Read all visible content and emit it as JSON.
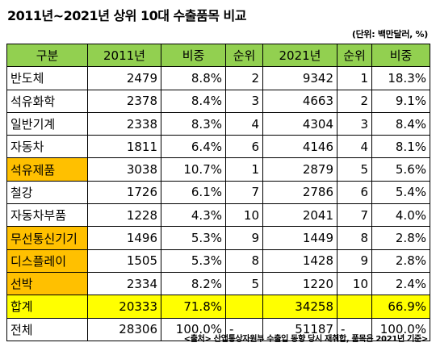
{
  "title": "2011년~2021년 상위 10대 수출품목 비교",
  "unit_note": "(단위: 백만달러, %)",
  "headers": [
    "구분",
    "2011년",
    "비중",
    "순위",
    "2021년",
    "순위",
    "비중"
  ],
  "rows": [
    {
      "name": "반도체",
      "v2011": "2479",
      "share2011": "8.8%",
      "rank2011": "2",
      "v2021": "9342",
      "rank2021": "1",
      "share2021": "18.3%"
    },
    {
      "name": "석유화학",
      "v2011": "2378",
      "share2011": "8.4%",
      "rank2011": "3",
      "v2021": "4663",
      "rank2021": "2",
      "share2021": "9.1%"
    },
    {
      "name": "일반기계",
      "v2011": "2338",
      "share2011": "8.3%",
      "rank2011": "4",
      "v2021": "4304",
      "rank2021": "3",
      "share2021": "8.4%"
    },
    {
      "name": "자동차",
      "v2011": "1811",
      "share2011": "6.4%",
      "rank2011": "6",
      "v2021": "4146",
      "rank2021": "4",
      "share2021": "8.1%"
    },
    {
      "name": "석유제품",
      "v2011": "3038",
      "share2011": "10.7%",
      "rank2011": "1",
      "v2021": "2879",
      "rank2021": "5",
      "share2021": "5.6%"
    },
    {
      "name": "철강",
      "v2011": "1726",
      "share2011": "6.1%",
      "rank2011": "7",
      "v2021": "2786",
      "rank2021": "6",
      "share2021": "5.4%"
    },
    {
      "name": "자동차부품",
      "v2011": "1228",
      "share2011": "4.3%",
      "rank2011": "10",
      "v2021": "2041",
      "rank2021": "7",
      "share2021": "4.0%"
    },
    {
      "name": "무선통신기기",
      "v2011": "1496",
      "share2011": "5.3%",
      "rank2011": "9",
      "v2021": "1449",
      "rank2021": "8",
      "share2021": "2.8%"
    },
    {
      "name": "디스플레이",
      "v2011": "1505",
      "share2011": "5.3%",
      "rank2011": "8",
      "v2021": "1428",
      "rank2021": "9",
      "share2021": "2.8%"
    },
    {
      "name": "선박",
      "v2011": "2334",
      "share2011": "8.2%",
      "rank2011": "5",
      "v2021": "1220",
      "rank2021": "10",
      "share2021": "2.4%"
    }
  ],
  "sum": {
    "name": "합계",
    "v2011": "20333",
    "share2011": "71.8%",
    "v2021": "34258",
    "share2021": "66.9%"
  },
  "total": {
    "name": "전체",
    "v2011": "28306",
    "share2011": "100.0%",
    "rank2011": "-",
    "v2021": "51187",
    "rank2021": "-",
    "share2021": "100.0%"
  },
  "footer": "<출처> 산업통상자원부 수출입 동향 당시 재취합, 품목은 2021년 기준>",
  "colors": {
    "header_bg": "#92d050",
    "highlight_name_bg": "#ffc000",
    "sum_row_bg": "#ffff00"
  }
}
